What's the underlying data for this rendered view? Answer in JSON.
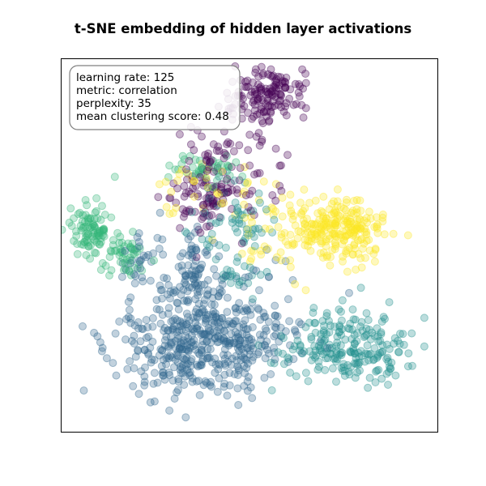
{
  "chart_data": {
    "type": "scatter",
    "title": "t-SNE embedding of hidden layer activations",
    "xlabel": "",
    "ylabel": "",
    "axes_visible": false,
    "xlim": [
      -50,
      50
    ],
    "ylim": [
      -50,
      50
    ],
    "grid": false,
    "legend": null,
    "marker_alpha": 0.3,
    "annotation": {
      "placement": "top-left",
      "lines": [
        "learning rate: 125",
        "metric: correlation",
        "perplexity: 35",
        "mean clustering score: 0.48"
      ]
    },
    "series": [
      {
        "color": "#440154",
        "clusters": [
          {
            "cx": 5,
            "cy": 40,
            "sx": 5,
            "sy": 3.5,
            "n": 140
          },
          {
            "cx": -10,
            "cy": 13,
            "sx": 6,
            "sy": 5,
            "n": 100
          },
          {
            "cx": -5,
            "cy": 25,
            "sx": 6,
            "sy": 6,
            "n": 50
          }
        ]
      },
      {
        "color": "#31688e",
        "clusters": [
          {
            "cx": -18,
            "cy": -27,
            "sx": 9,
            "sy": 7,
            "n": 260
          },
          {
            "cx": -4,
            "cy": -23,
            "sx": 10,
            "sy": 8,
            "n": 240
          },
          {
            "cx": -15,
            "cy": -8,
            "sx": 4,
            "sy": 6,
            "n": 80
          },
          {
            "cx": -28,
            "cy": -4,
            "sx": 3,
            "sy": 4,
            "n": 30
          }
        ]
      },
      {
        "color": "#21908d",
        "clusters": [
          {
            "cx": 27,
            "cy": -28,
            "sx": 9,
            "sy": 5,
            "n": 220
          },
          {
            "cx": -6,
            "cy": 7,
            "sx": 6,
            "sy": 6,
            "n": 60
          },
          {
            "cx": -3,
            "cy": -8,
            "sx": 3,
            "sy": 2,
            "n": 20
          }
        ]
      },
      {
        "color": "#35b779",
        "clusters": [
          {
            "cx": -42,
            "cy": 4,
            "sx": 2.5,
            "sy": 3.5,
            "n": 90
          },
          {
            "cx": -33,
            "cy": -2,
            "sx": 3,
            "sy": 3,
            "n": 50
          },
          {
            "cx": -13,
            "cy": 21,
            "sx": 6,
            "sy": 2,
            "n": 40
          }
        ]
      },
      {
        "color": "#fde725",
        "clusters": [
          {
            "cx": 25,
            "cy": 4,
            "sx": 6,
            "sy": 4,
            "n": 180
          },
          {
            "cx": 13,
            "cy": 4,
            "sx": 8,
            "sy": 6,
            "n": 100
          },
          {
            "cx": -10,
            "cy": 17,
            "sx": 8,
            "sy": 4,
            "n": 30
          }
        ]
      }
    ]
  }
}
